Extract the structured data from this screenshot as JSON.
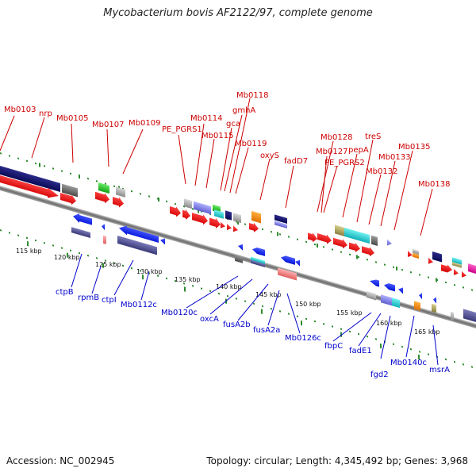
{
  "header": {
    "title": "Mycobacterium bovis AF2122/97, complete genome"
  },
  "footer": {
    "accession": "Accession: NC_002945",
    "summary": "Topology: circular; Length: 4,345,492 bp; Genes: 3,968"
  },
  "colors": {
    "forward_label": "#cc0000",
    "reverse_label": "#0000cc",
    "backbone": "#8c8c8c",
    "dots": "#2e8b2e"
  },
  "scale": {
    "ticks": [
      "115 kbp",
      "120 kbp",
      "125 kbp",
      "130 kbp",
      "135 kbp",
      "140 kbp",
      "145 kbp",
      "150 kbp",
      "155 kbp",
      "160 kbp",
      "165 kbp"
    ]
  },
  "forward_labels": [
    "Mb0103",
    "nrp",
    "Mb0105",
    "Mb0107",
    "Mb0109",
    "PE_PGRS1",
    "Mb0114",
    "Mb0115",
    "gca",
    "gmhA",
    "Mb0118",
    "Mb0119",
    "oxyS",
    "fadD7",
    "Mb0127",
    "Mb0128",
    "PE_PGRS2",
    "pepA",
    "treS",
    "Mb0132",
    "Mb0133",
    "Mb0135",
    "Mb0138"
  ],
  "reverse_labels": [
    "ctpB",
    "rpmB",
    "ctpI",
    "Mb0112c",
    "Mb0120c",
    "oxcA",
    "fusA2b",
    "fusA2a",
    "Mb0126c",
    "fbpC",
    "fadE1",
    "fgd2",
    "Mb0140c",
    "msrA"
  ]
}
